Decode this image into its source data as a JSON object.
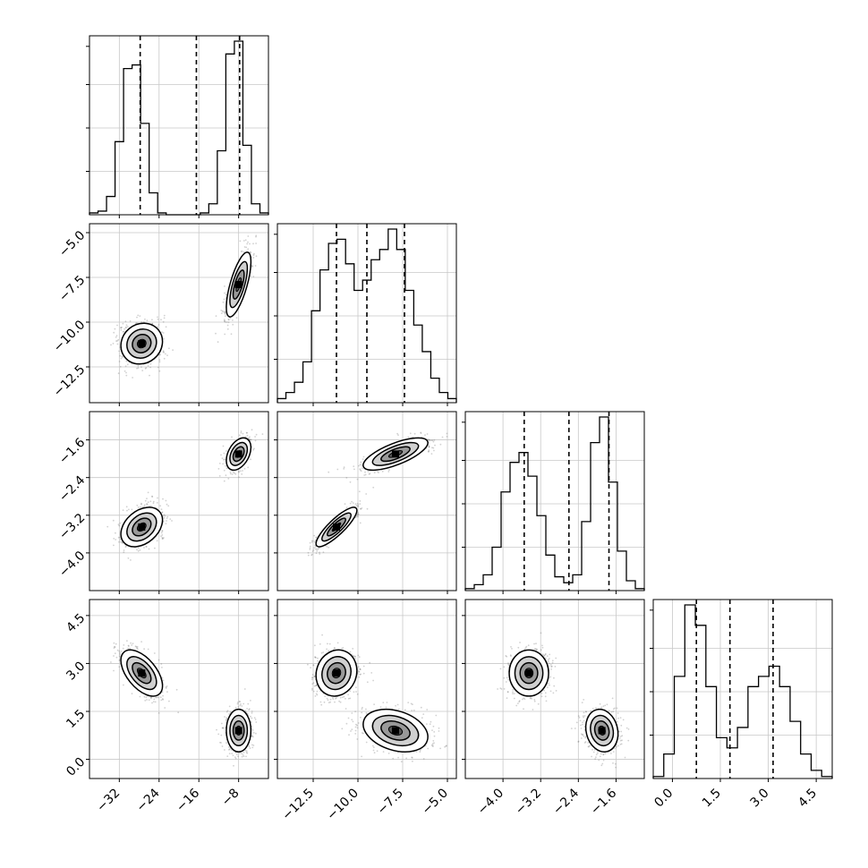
{
  "chart_data": {
    "type": "corner",
    "title": "",
    "parameters": [
      {
        "name": "",
        "range": [
          -38,
          -2
        ],
        "ticks": [
          -32,
          -24,
          -16,
          -8
        ],
        "tick_labels": [
          "−32",
          "−24",
          "−16",
          "−8"
        ],
        "quantiles": [
          -27.8,
          -16.5,
          -7.8
        ]
      },
      {
        "name": "",
        "range": [
          -14.5,
          -4.5
        ],
        "ticks": [
          -12.5,
          -10.0,
          -7.5,
          -5.0
        ],
        "tick_labels": [
          "−12.5",
          "−10.0",
          "−7.5",
          "−5.0"
        ],
        "quantiles": [
          -11.2,
          -9.5,
          -7.4
        ]
      },
      {
        "name": "",
        "range": [
          -4.8,
          -1.0
        ],
        "ticks": [
          -4.0,
          -3.2,
          -2.4,
          -1.6
        ],
        "tick_labels": [
          "−4.0",
          "−3.2",
          "−2.4",
          "−1.6"
        ],
        "quantiles": [
          -3.55,
          -2.6,
          -1.75
        ]
      },
      {
        "name": "",
        "range": [
          -0.6,
          5.0
        ],
        "ticks": [
          0.0,
          1.5,
          3.0,
          4.5
        ],
        "tick_labels": [
          "0.0",
          "1.5",
          "3.0",
          "4.5"
        ],
        "quantiles": [
          0.75,
          1.8,
          3.15
        ]
      }
    ],
    "histograms": [
      [
        0.01,
        0.02,
        0.1,
        0.4,
        0.8,
        0.82,
        0.5,
        0.12,
        0.01,
        0,
        0,
        0,
        0,
        0.01,
        0.06,
        0.35,
        0.88,
        0.95,
        0.38,
        0.06,
        0.01
      ],
      [
        0.02,
        0.05,
        0.1,
        0.2,
        0.45,
        0.65,
        0.78,
        0.8,
        0.68,
        0.55,
        0.6,
        0.7,
        0.75,
        0.85,
        0.75,
        0.55,
        0.38,
        0.25,
        0.12,
        0.05,
        0.02
      ],
      [
        0.01,
        0.03,
        0.08,
        0.22,
        0.5,
        0.65,
        0.7,
        0.58,
        0.38,
        0.18,
        0.07,
        0.04,
        0.08,
        0.35,
        0.75,
        0.88,
        0.55,
        0.2,
        0.05,
        0.01
      ],
      [
        0.01,
        0.12,
        0.5,
        0.85,
        0.75,
        0.45,
        0.2,
        0.15,
        0.25,
        0.45,
        0.5,
        0.55,
        0.45,
        0.28,
        0.12,
        0.04,
        0.01
      ]
    ],
    "modes": [
      {
        "center": [
          -27.5,
          -11.2,
          -3.45,
          2.7
        ],
        "sigma": [
          2.2,
          0.6,
          0.22,
          0.38
        ],
        "correlations": {
          "0-1": 0.1,
          "0-2": 0.35,
          "0-3": -0.55,
          "1-2": 0.85,
          "1-3": 0.1,
          "2-3": 0.0
        }
      },
      {
        "center": [
          -8.0,
          -7.9,
          -1.9,
          0.9
        ],
        "sigma": [
          1.3,
          0.95,
          0.18,
          0.35
        ],
        "correlations": {
          "0-1": 0.7,
          "0-2": 0.4,
          "0-3": 0.0,
          "1-2": 0.7,
          "1-3": -0.3,
          "2-3": -0.15
        }
      }
    ]
  }
}
